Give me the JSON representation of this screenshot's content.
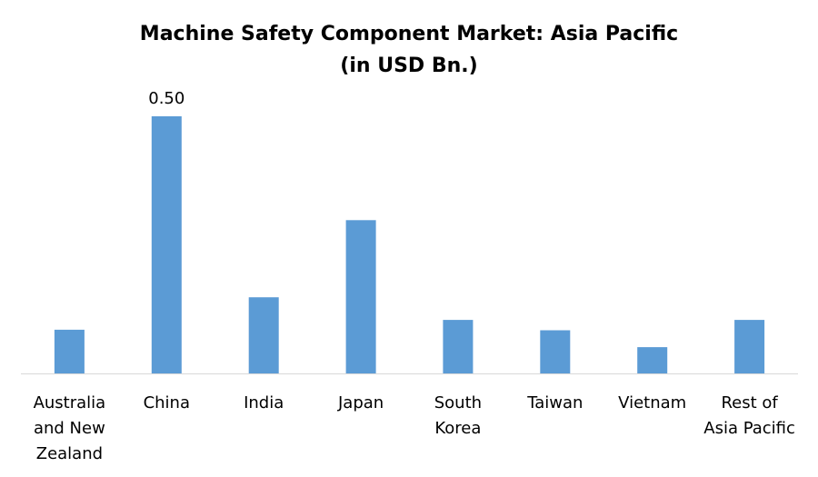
{
  "chart_data": {
    "type": "bar",
    "title": "Machine Safety Component Market: Asia Pacific",
    "subtitle": "(in USD Bn.)",
    "categories": [
      "Australia and New Zealand",
      "China",
      "India",
      "Japan",
      "South Korea",
      "Taiwan",
      "Vietnam",
      "Rest of Asia Pacific"
    ],
    "category_label_lines": [
      [
        "Australia",
        "and New",
        "Zealand"
      ],
      [
        "China"
      ],
      [
        "India"
      ],
      [
        "Japan"
      ],
      [
        "South",
        "Korea"
      ],
      [
        "Taiwan"
      ],
      [
        "Vietnam"
      ],
      [
        "Rest of",
        "Asia Pacific"
      ]
    ],
    "values": [
      0.085,
      0.5,
      0.148,
      0.298,
      0.104,
      0.084,
      0.051,
      0.104
    ],
    "data_labels": [
      "",
      "0.50",
      "",
      "",
      "",
      "",
      "",
      ""
    ],
    "bar_color": "#5b9bd5",
    "axis_color": "#d9d9d9",
    "ylim": [
      0,
      0.5
    ],
    "grid": false,
    "legend": "none",
    "xlabel": "",
    "ylabel": ""
  }
}
